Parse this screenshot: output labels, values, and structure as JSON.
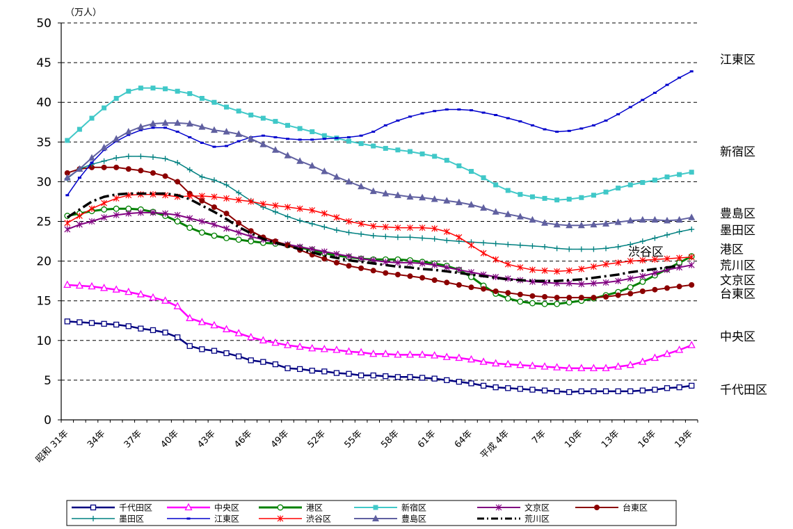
{
  "chart_data": {
    "type": "line",
    "unit": "（万人）",
    "ylim": [
      0,
      50
    ],
    "y_ticks": [
      0,
      5,
      10,
      15,
      20,
      25,
      30,
      35,
      40,
      45,
      50
    ],
    "grid": "dashed horizontal",
    "legend_placement": "bottom",
    "x_tick_labels": [
      "昭和 31年",
      "34年",
      "37年",
      "40年",
      "43年",
      "46年",
      "49年",
      "52年",
      "55年",
      "58年",
      "61年",
      "64年",
      "平成 4年",
      "7年",
      "10年",
      "13年",
      "16年",
      "19年"
    ],
    "x_start_label": "昭和 31年",
    "x_count": 52,
    "series": [
      {
        "name": "千代田区",
        "label": "千代田区",
        "color": "#000080",
        "width": 2.5,
        "dash": "",
        "marker": "square-open",
        "values": [
          12.4,
          12.3,
          12.2,
          12.1,
          12.0,
          11.8,
          11.5,
          11.3,
          11.0,
          10.4,
          9.3,
          8.9,
          8.7,
          8.4,
          8.0,
          7.5,
          7.3,
          7.0,
          6.5,
          6.4,
          6.2,
          6.1,
          5.9,
          5.8,
          5.6,
          5.6,
          5.5,
          5.4,
          5.4,
          5.3,
          5.2,
          5.0,
          4.8,
          4.6,
          4.3,
          4.1,
          4.0,
          3.9,
          3.8,
          3.7,
          3.6,
          3.5,
          3.6,
          3.6,
          3.6,
          3.6,
          3.6,
          3.7,
          3.8,
          4.0,
          4.1,
          4.3,
          4.5,
          4.5
        ]
      },
      {
        "name": "中央区",
        "label": "中央区",
        "color": "#ff00ff",
        "width": 2.5,
        "dash": "",
        "marker": "triangle-open",
        "values": [
          17.0,
          16.9,
          16.8,
          16.6,
          16.4,
          16.1,
          15.8,
          15.4,
          15.0,
          14.3,
          12.8,
          12.3,
          11.9,
          11.4,
          10.9,
          10.4,
          10.0,
          9.7,
          9.4,
          9.2,
          9.0,
          8.9,
          8.8,
          8.6,
          8.5,
          8.3,
          8.3,
          8.2,
          8.2,
          8.2,
          8.1,
          7.9,
          7.8,
          7.6,
          7.3,
          7.1,
          7.0,
          6.9,
          6.8,
          6.7,
          6.6,
          6.5,
          6.5,
          6.5,
          6.5,
          6.7,
          6.9,
          7.3,
          7.8,
          8.3,
          8.8,
          9.4,
          10.0,
          10.6,
          11.2
        ]
      },
      {
        "name": "港区",
        "label": "港区",
        "color": "#008000",
        "width": 3,
        "dash": "",
        "marker": "circle-open",
        "values": [
          25.7,
          26.0,
          26.3,
          26.5,
          26.6,
          26.6,
          26.5,
          26.2,
          25.7,
          25.0,
          24.2,
          23.6,
          23.2,
          22.9,
          22.7,
          22.5,
          22.3,
          22.2,
          22.0,
          21.7,
          21.4,
          21.0,
          20.7,
          20.5,
          20.3,
          20.2,
          20.2,
          20.2,
          20.1,
          19.9,
          19.7,
          19.4,
          18.9,
          18.0,
          16.9,
          15.9,
          15.3,
          14.9,
          14.7,
          14.6,
          14.6,
          14.8,
          15.0,
          15.3,
          15.7,
          16.1,
          16.7,
          17.4,
          18.2,
          19.0,
          19.8,
          20.6,
          21.2
        ]
      },
      {
        "name": "新宿区",
        "label": "新宿区",
        "color": "#40c8c8",
        "width": 2,
        "dash": "",
        "marker": "square-filled",
        "values": [
          35.2,
          36.6,
          38.0,
          39.3,
          40.5,
          41.4,
          41.8,
          41.8,
          41.7,
          41.4,
          41.1,
          40.5,
          40.0,
          39.4,
          38.9,
          38.4,
          38.0,
          37.6,
          37.1,
          36.7,
          36.3,
          35.8,
          35.5,
          35.1,
          34.8,
          34.5,
          34.2,
          34.0,
          33.8,
          33.5,
          33.2,
          32.7,
          32.0,
          31.3,
          30.5,
          29.6,
          28.9,
          28.4,
          28.1,
          27.9,
          27.7,
          27.8,
          28.0,
          28.3,
          28.7,
          29.2,
          29.6,
          29.9,
          30.2,
          30.6,
          30.9,
          31.2,
          31.5
        ]
      },
      {
        "name": "文京区",
        "label": "文京区",
        "color": "#800080",
        "width": 2,
        "dash": "",
        "marker": "asterisk",
        "values": [
          24.0,
          24.6,
          25.0,
          25.5,
          25.8,
          26.0,
          26.1,
          26.1,
          26.0,
          25.8,
          25.4,
          25.0,
          24.6,
          24.1,
          23.6,
          23.1,
          22.7,
          22.4,
          22.1,
          21.8,
          21.5,
          21.2,
          20.9,
          20.6,
          20.3,
          20.1,
          19.9,
          19.8,
          19.8,
          19.7,
          19.5,
          19.2,
          18.9,
          18.6,
          18.3,
          18.0,
          17.8,
          17.6,
          17.4,
          17.3,
          17.2,
          17.2,
          17.1,
          17.2,
          17.3,
          17.5,
          17.8,
          18.1,
          18.5,
          18.9,
          19.2,
          19.5,
          19.8
        ]
      },
      {
        "name": "台東区",
        "label": "台東区",
        "color": "#8b0000",
        "width": 2,
        "dash": "",
        "marker": "circle-filled",
        "values": [
          31.1,
          31.6,
          31.8,
          31.8,
          31.8,
          31.6,
          31.4,
          31.1,
          30.7,
          30.0,
          28.5,
          27.6,
          26.8,
          26.0,
          24.8,
          23.8,
          23.0,
          22.5,
          22.0,
          21.4,
          20.8,
          20.3,
          19.8,
          19.4,
          19.1,
          18.8,
          18.5,
          18.3,
          18.1,
          17.9,
          17.6,
          17.3,
          17.0,
          16.7,
          16.5,
          16.2,
          16.0,
          15.8,
          15.6,
          15.5,
          15.4,
          15.4,
          15.4,
          15.4,
          15.5,
          15.7,
          15.9,
          16.2,
          16.4,
          16.6,
          16.8,
          17.0,
          17.3
        ]
      },
      {
        "name": "墨田区",
        "label": "墨田区",
        "color": "#008080",
        "width": 1.5,
        "dash": "",
        "marker": "plus",
        "values": [
          30.4,
          31.6,
          32.2,
          32.6,
          33.0,
          33.2,
          33.2,
          33.1,
          32.9,
          32.4,
          31.5,
          30.6,
          30.2,
          29.6,
          28.6,
          27.6,
          26.8,
          26.2,
          25.6,
          25.1,
          24.7,
          24.3,
          23.9,
          23.6,
          23.4,
          23.2,
          23.1,
          23.0,
          23.0,
          22.9,
          22.8,
          22.6,
          22.5,
          22.4,
          22.3,
          22.2,
          22.1,
          22.0,
          21.9,
          21.8,
          21.6,
          21.5,
          21.5,
          21.5,
          21.6,
          21.8,
          22.1,
          22.5,
          22.9,
          23.3,
          23.7,
          24.0,
          24.2
        ]
      },
      {
        "name": "江東区",
        "label": "江東区",
        "color": "#0000cc",
        "width": 1.5,
        "dash": "",
        "marker": "dash",
        "values": [
          28.3,
          30.5,
          32.4,
          34.0,
          35.1,
          35.9,
          36.5,
          36.8,
          36.8,
          36.3,
          35.6,
          34.9,
          34.4,
          34.5,
          35.1,
          35.6,
          35.8,
          35.6,
          35.4,
          35.3,
          35.3,
          35.4,
          35.5,
          35.6,
          35.8,
          36.3,
          37.1,
          37.7,
          38.2,
          38.6,
          38.9,
          39.1,
          39.1,
          39.0,
          38.7,
          38.4,
          38.0,
          37.6,
          37.1,
          36.6,
          36.3,
          36.4,
          36.7,
          37.1,
          37.7,
          38.5,
          39.4,
          40.3,
          41.2,
          42.2,
          43.1,
          43.9,
          44.7
        ]
      },
      {
        "name": "渋谷区",
        "label": "渋谷区",
        "color": "#ff0000",
        "width": 1.5,
        "dash": "",
        "marker": "asterisk",
        "values": [
          24.8,
          25.7,
          26.6,
          27.3,
          27.9,
          28.3,
          28.4,
          28.4,
          28.3,
          28.1,
          28.2,
          28.2,
          28.1,
          27.9,
          27.7,
          27.5,
          27.2,
          27.0,
          26.8,
          26.6,
          26.4,
          26.0,
          25.5,
          25.0,
          24.7,
          24.4,
          24.3,
          24.2,
          24.2,
          24.2,
          24.1,
          23.7,
          23.0,
          22.0,
          21.0,
          20.2,
          19.6,
          19.2,
          18.9,
          18.8,
          18.7,
          18.8,
          19.0,
          19.3,
          19.6,
          19.8,
          20.0,
          20.1,
          20.2,
          20.3,
          20.4,
          20.5,
          20.5
        ]
      },
      {
        "name": "豊島区",
        "label": "豊島区",
        "color": "#6060a0",
        "width": 2,
        "dash": "",
        "marker": "triangle-filled",
        "values": [
          30.5,
          31.6,
          33.0,
          34.3,
          35.4,
          36.3,
          36.9,
          37.3,
          37.4,
          37.4,
          37.3,
          36.9,
          36.5,
          36.3,
          36.0,
          35.4,
          34.7,
          34.0,
          33.3,
          32.6,
          32.0,
          31.3,
          30.6,
          30.0,
          29.4,
          28.8,
          28.5,
          28.3,
          28.1,
          28.0,
          27.8,
          27.6,
          27.4,
          27.1,
          26.7,
          26.2,
          25.9,
          25.6,
          25.2,
          24.8,
          24.6,
          24.5,
          24.5,
          24.6,
          24.7,
          24.9,
          25.1,
          25.2,
          25.2,
          25.1,
          25.2,
          25.5,
          25.8,
          26.0
        ]
      },
      {
        "name": "荒川区",
        "label": "荒川区",
        "color": "#000000",
        "width": 3.5,
        "dash": "14,5,3,5",
        "marker": "none",
        "values": [
          25.5,
          26.5,
          27.5,
          28.1,
          28.4,
          28.5,
          28.5,
          28.5,
          28.5,
          28.3,
          27.8,
          27.0,
          26.2,
          25.3,
          24.3,
          23.5,
          22.8,
          22.3,
          21.9,
          21.5,
          21.1,
          20.7,
          20.4,
          20.1,
          19.9,
          19.7,
          19.5,
          19.3,
          19.2,
          19.0,
          18.9,
          18.7,
          18.5,
          18.3,
          18.1,
          17.9,
          17.7,
          17.6,
          17.5,
          17.5,
          17.5,
          17.6,
          17.7,
          17.9,
          18.1,
          18.3,
          18.6,
          18.8,
          19.0,
          19.2,
          19.4
        ]
      }
    ],
    "right_labels": [
      {
        "text": "江東区",
        "y": 45.4
      },
      {
        "text": "新宿区",
        "y": 33.8
      },
      {
        "text": "豊島区",
        "y": 26.0
      },
      {
        "text": "墨田区",
        "y": 23.9
      },
      {
        "text": "港区",
        "y": 21.5
      },
      {
        "text": "荒川区",
        "y": 19.5
      },
      {
        "text": "文京区",
        "y": 17.6
      },
      {
        "text": "台東区",
        "y": 15.9
      },
      {
        "text": "中央区",
        "y": 10.5
      },
      {
        "text": "千代田区",
        "y": 3.8
      }
    ],
    "inline_labels": [
      {
        "text": "渋谷区",
        "y": 21.2
      }
    ],
    "legend_rows": [
      [
        "千代田区",
        "中央区",
        "港区",
        "新宿区",
        "文京区",
        "台東区"
      ],
      [
        "墨田区",
        "江東区",
        "渋谷区",
        "豊島区",
        "荒川区"
      ]
    ]
  }
}
